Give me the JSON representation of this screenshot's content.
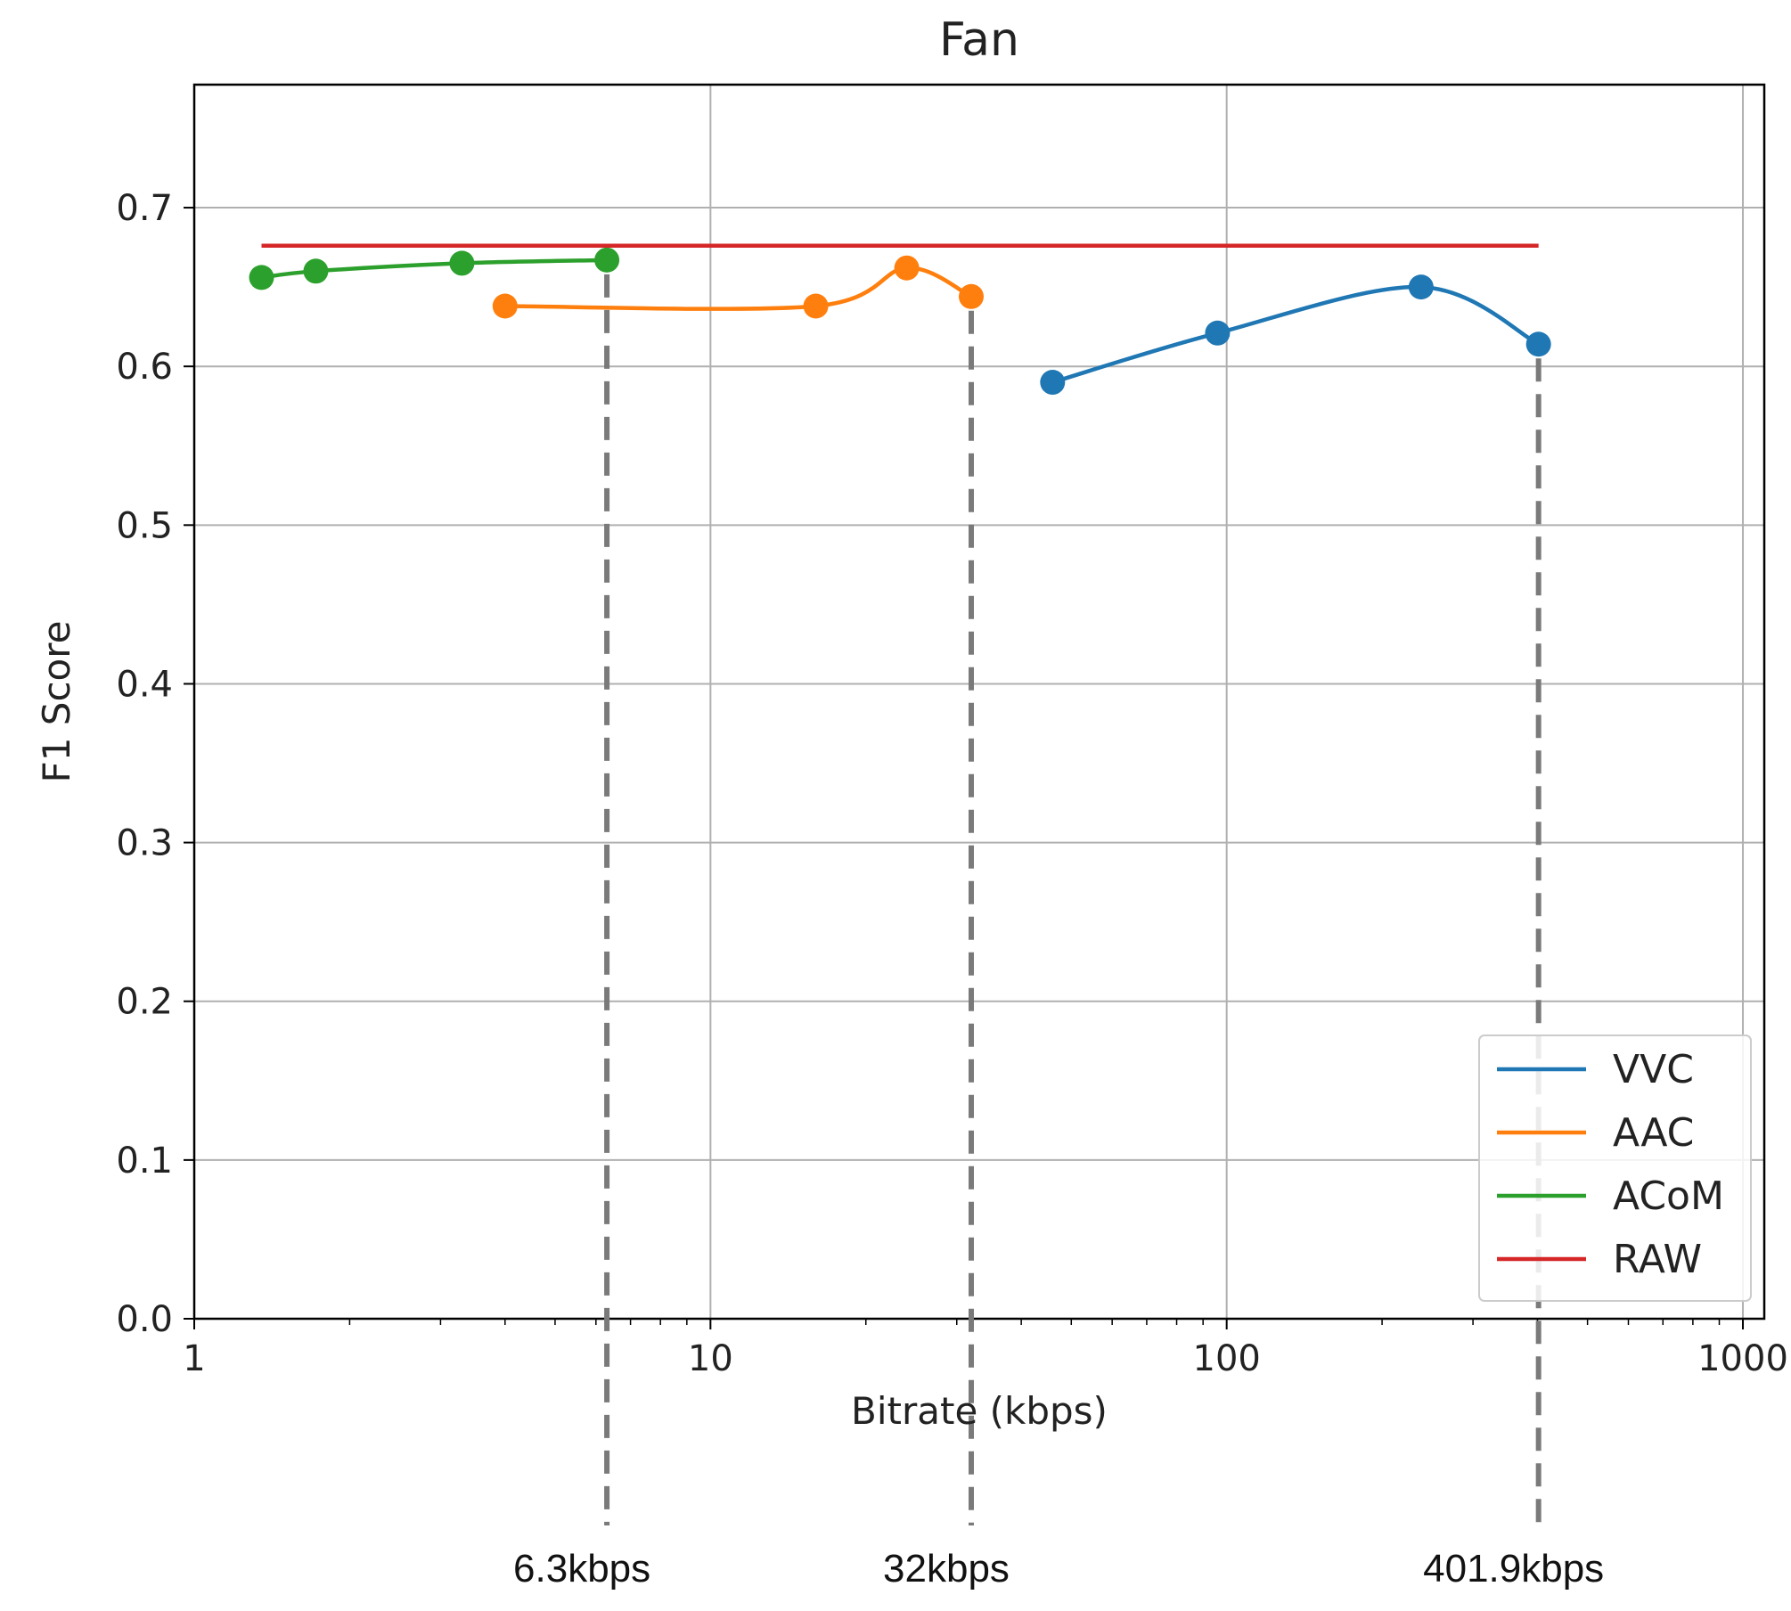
{
  "chart_data": {
    "type": "line",
    "title": "Fan",
    "xlabel": "Bitrate (kbps)",
    "ylabel": "F1 Score",
    "x_scale": "log",
    "xlim": [
      1,
      1100
    ],
    "ylim": [
      0,
      0.7775
    ],
    "x_ticks": [
      1,
      10,
      100,
      1000
    ],
    "x_tick_labels": [
      "1",
      "10",
      "100",
      "1000"
    ],
    "y_ticks": [
      0.0,
      0.1,
      0.2,
      0.3,
      0.4,
      0.5,
      0.6,
      0.7
    ],
    "y_tick_labels": [
      "0.0",
      "0.1",
      "0.2",
      "0.3",
      "0.4",
      "0.5",
      "0.6",
      "0.7"
    ],
    "grid": true,
    "legend_position": "bottom-right",
    "series": [
      {
        "name": "VVC",
        "color": "#1f77b4",
        "markers": true,
        "smooth": true,
        "x": [
          46,
          96,
          238,
          401.9
        ],
        "y": [
          0.59,
          0.621,
          0.65,
          0.614
        ]
      },
      {
        "name": "AAC",
        "color": "#ff7f0e",
        "markers": true,
        "smooth": true,
        "x": [
          4.0,
          16,
          24,
          32
        ],
        "y": [
          0.638,
          0.638,
          0.662,
          0.644
        ]
      },
      {
        "name": "ACoM",
        "color": "#2ca02c",
        "markers": true,
        "smooth": true,
        "x": [
          1.35,
          1.72,
          3.3,
          6.3
        ],
        "y": [
          0.656,
          0.66,
          0.665,
          0.667
        ]
      },
      {
        "name": "RAW",
        "color": "#d62728",
        "markers": false,
        "smooth": false,
        "x": [
          1.35,
          401.9
        ],
        "y": [
          0.676,
          0.676
        ]
      }
    ],
    "annotations": [
      {
        "label": "6.3kbps",
        "x": 6.3,
        "y": 0.667
      },
      {
        "label": "32kbps",
        "x": 32,
        "y": 0.644
      },
      {
        "label": "401.9kbps",
        "x": 401.9,
        "y": 0.614
      }
    ]
  }
}
